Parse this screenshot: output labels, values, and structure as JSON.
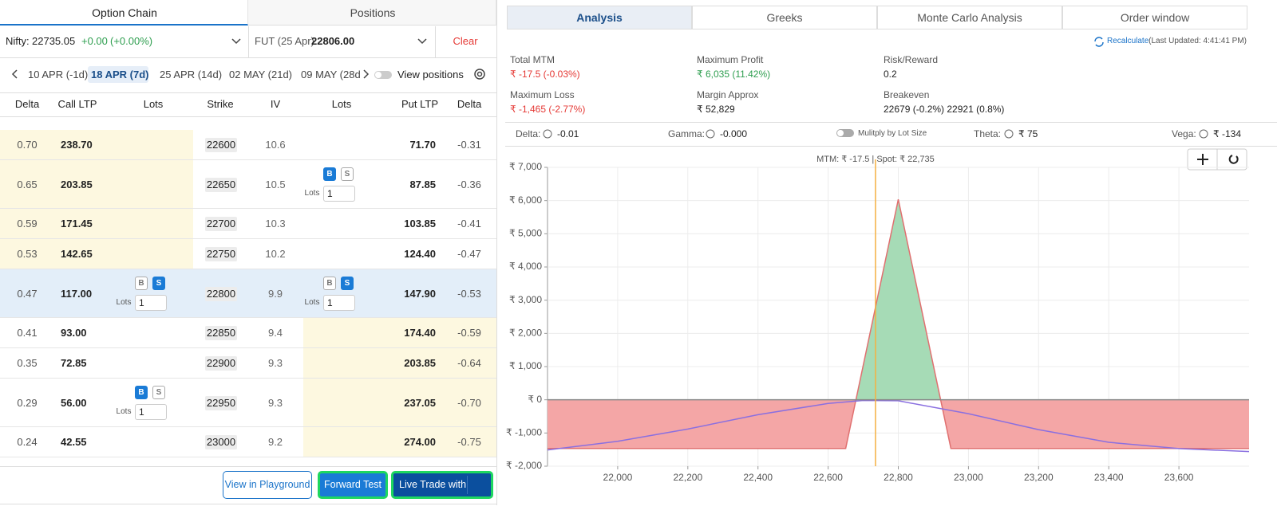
{
  "option_chain": {
    "tabs": [
      "Option Chain",
      "Positions"
    ],
    "active_tab": 0,
    "nifty": {
      "label": "Nifty:",
      "price": "22735.05",
      "change": "+0.00",
      "change_pct": "(+0.00%)"
    },
    "future": {
      "label": "FUT (25 Apr)",
      "price": "22806.00"
    },
    "clear": "Clear",
    "expiries": [
      "10 APR (-1d)",
      "18 APR (7d)",
      "25 APR (14d)",
      "02 MAY (21d)",
      "09 MAY (28d"
    ],
    "active_expiry": 1,
    "view_positions": "View positions",
    "columns": [
      "Delta",
      "Call LTP",
      "Lots",
      "Strike",
      "IV",
      "Lots",
      "Put LTP",
      "Delta"
    ],
    "rows": [
      {
        "call_delta": "0.70",
        "call_ltp": "238.70",
        "strike": "22600",
        "iv": "10.6",
        "put_ltp": "71.70",
        "put_delta": "-0.31",
        "shade": "call"
      },
      {
        "call_delta": "0.65",
        "call_ltp": "203.85",
        "strike": "22650",
        "iv": "10.5",
        "put_ltp": "87.85",
        "put_delta": "-0.36",
        "shade": "call",
        "put_lots": {
          "buy": "B",
          "sell": "S",
          "active": "buy",
          "label": "Lots",
          "qty": "1"
        }
      },
      {
        "call_delta": "0.59",
        "call_ltp": "171.45",
        "strike": "22700",
        "iv": "10.3",
        "put_ltp": "103.85",
        "put_delta": "-0.41",
        "shade": "call"
      },
      {
        "call_delta": "0.53",
        "call_ltp": "142.65",
        "strike": "22750",
        "iv": "10.2",
        "put_ltp": "124.40",
        "put_delta": "-0.47",
        "shade": "call"
      },
      {
        "call_delta": "0.47",
        "call_ltp": "117.00",
        "strike": "22800",
        "iv": "9.9",
        "put_ltp": "147.90",
        "put_delta": "-0.53",
        "shade": "atm",
        "call_lots": {
          "buy": "B",
          "sell": "S",
          "active": "sell",
          "label": "Lots",
          "qty": "1"
        },
        "put_lots": {
          "buy": "B",
          "sell": "S",
          "active": "sell",
          "label": "Lots",
          "qty": "1"
        }
      },
      {
        "call_delta": "0.41",
        "call_ltp": "93.00",
        "strike": "22850",
        "iv": "9.4",
        "put_ltp": "174.40",
        "put_delta": "-0.59",
        "shade": "put"
      },
      {
        "call_delta": "0.35",
        "call_ltp": "72.85",
        "strike": "22900",
        "iv": "9.3",
        "put_ltp": "203.85",
        "put_delta": "-0.64",
        "shade": "put"
      },
      {
        "call_delta": "0.29",
        "call_ltp": "56.00",
        "strike": "22950",
        "iv": "9.3",
        "put_ltp": "237.05",
        "put_delta": "-0.70",
        "shade": "put",
        "call_lots": {
          "buy": "B",
          "sell": "S",
          "active": "buy",
          "label": "Lots",
          "qty": "1"
        }
      },
      {
        "call_delta": "0.24",
        "call_ltp": "42.55",
        "strike": "23000",
        "iv": "9.2",
        "put_ltp": "274.00",
        "put_delta": "-0.75",
        "shade": "put"
      }
    ],
    "buttons": [
      "View in Playground",
      "Forward Test",
      "Live Trade with"
    ]
  },
  "analysis": {
    "tabs": [
      "Analysis",
      "Greeks",
      "Monte Carlo Analysis",
      "Order window"
    ],
    "active_tab": 0,
    "recalculate": "Recalculate",
    "last_updated": "(Last Updated: 4:41:41 PM)",
    "stats": [
      {
        "label": "Total MTM",
        "value": "₹ -17.5 (-0.03%)",
        "tone": "loss"
      },
      {
        "label": "Maximum Profit",
        "value": "₹ 6,035 (11.42%)",
        "tone": "profit"
      },
      {
        "label": "Risk/Reward",
        "value": "0.2",
        "tone": "plain"
      },
      {
        "label": "Maximum Loss",
        "value": "₹ -1,465 (-2.77%)",
        "tone": "loss"
      },
      {
        "label": "Margin Approx",
        "value": "₹ 52,829",
        "tone": "plain"
      },
      {
        "label": "Breakeven",
        "value": "22679 (-0.2%)  22921 (0.8%)",
        "tone": "plain"
      }
    ],
    "greeks": [
      {
        "label": "Delta:",
        "value": "-0.01"
      },
      {
        "label": "Gamma:",
        "value": "-0.000"
      },
      {
        "label": "Theta:",
        "value": "₹ 75"
      },
      {
        "label": "Vega:",
        "value": "₹ -134"
      }
    ],
    "lot_toggle": "Mulitply by Lot Size"
  },
  "chart_data": {
    "type": "payoff",
    "annotation": "MTM: ₹ -17.5  |  Spot: ₹ 22,735",
    "spot": 22735,
    "spot_color": "#f5b041",
    "xlim": [
      21800,
      23800
    ],
    "xticks": [
      {
        "value": 22000,
        "label": "22,000"
      },
      {
        "value": 22200,
        "label": "22,200"
      },
      {
        "value": 22400,
        "label": "22,400"
      },
      {
        "value": 22600,
        "label": "22,600"
      },
      {
        "value": 22800,
        "label": "22,800"
      },
      {
        "value": 23000,
        "label": "23,000"
      },
      {
        "value": 23200,
        "label": "23,200"
      },
      {
        "value": 23400,
        "label": "23,400"
      },
      {
        "value": 23600,
        "label": "23,600"
      }
    ],
    "ylim": [
      -2000,
      7000
    ],
    "yticks": [
      {
        "value": 7000,
        "label": "₹ 7,000"
      },
      {
        "value": 6000,
        "label": "₹ 6,000"
      },
      {
        "value": 5000,
        "label": "₹ 5,000"
      },
      {
        "value": 4000,
        "label": "₹ 4,000"
      },
      {
        "value": 3000,
        "label": "₹ 3,000"
      },
      {
        "value": 2000,
        "label": "₹ 2,000"
      },
      {
        "value": 1000,
        "label": "₹ 1,000"
      },
      {
        "value": 0,
        "label": "₹ 0"
      },
      {
        "value": -1000,
        "label": "₹ -1,000"
      },
      {
        "value": -2000,
        "label": "₹ -2,000"
      }
    ],
    "grid": true,
    "series": [
      {
        "x": [
          21800,
          22650,
          22800,
          22950,
          23800
        ],
        "values": [
          -1465,
          -1465,
          6035,
          -1465,
          -1465
        ],
        "color": "#e07070",
        "fill_positive": "#a6dbb6",
        "fill_negative": "#f4a6a6"
      },
      {
        "x": [
          21800,
          22000,
          22200,
          22400,
          22600,
          22700,
          22800,
          23000,
          23200,
          23400,
          23600,
          23800
        ],
        "values": [
          -1510,
          -1250,
          -880,
          -450,
          -110,
          -20,
          -30,
          -420,
          -900,
          -1280,
          -1470,
          -1560
        ],
        "color": "#8a6fe0"
      }
    ]
  }
}
